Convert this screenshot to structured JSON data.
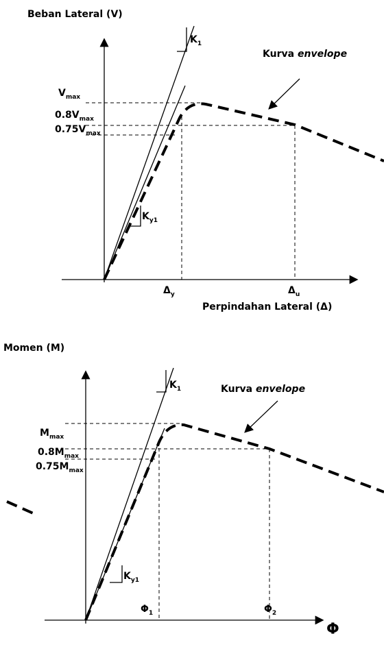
{
  "top": {
    "title": "Beban Lateral (V)",
    "k1": {
      "main": "K",
      "sub": "1"
    },
    "curve_label": {
      "plain": "Kurva",
      "italic": "envelope"
    },
    "vmax": {
      "main": "V",
      "sub": "max"
    },
    "v08": {
      "main": "0.8V",
      "sub": "max"
    },
    "v075": {
      "main": "0.75V",
      "sub": "max"
    },
    "ky1": {
      "main": "K",
      "sub": "y1"
    },
    "dy": {
      "main": "Δ",
      "sub": "y"
    },
    "du": {
      "main": "Δ",
      "sub": "u"
    },
    "x_label": "Perpindahan Lateral (Δ)"
  },
  "bottom": {
    "title": "Momen (M)",
    "k1": {
      "main": "K",
      "sub": "1"
    },
    "curve_label": {
      "plain": "Kurva",
      "italic": "envelope"
    },
    "mmax": {
      "main": "M",
      "sub": "max"
    },
    "m08": {
      "main": "0.8M",
      "sub": "max"
    },
    "m075": {
      "main": "0.75M",
      "sub": "max"
    },
    "ky1": {
      "main": "K",
      "sub": "y1"
    },
    "p1": {
      "main": "Φ",
      "sub": "1"
    },
    "p2": {
      "main": "Φ",
      "sub": "2"
    },
    "x_label": "Φ"
  }
}
